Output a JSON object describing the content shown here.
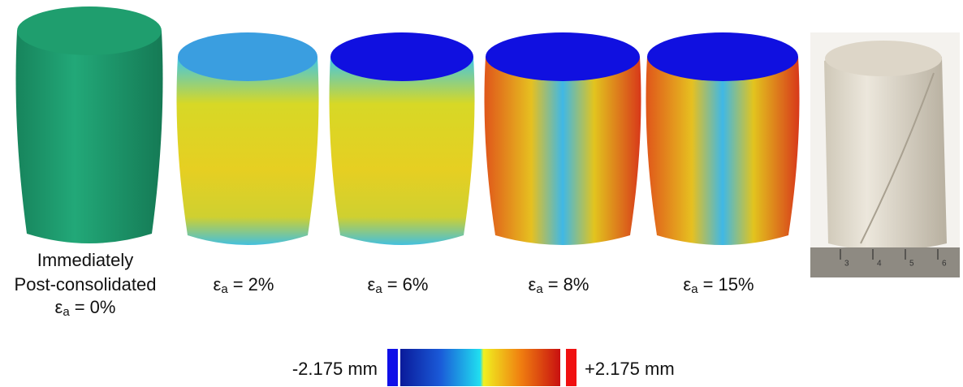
{
  "specimens": [
    {
      "caption": [
        "Immediately",
        "Post-consolidated"
      ],
      "strain": {
        "symbol": "ε",
        "subscript": "a",
        "text": "= 0%"
      }
    },
    {
      "strain": {
        "symbol": "ε",
        "subscript": "a",
        "text": "= 2%"
      }
    },
    {
      "strain": {
        "symbol": "ε",
        "subscript": "a",
        "text": "= 6%"
      }
    },
    {
      "strain": {
        "symbol": "ε",
        "subscript": "a",
        "text": "= 8%"
      }
    },
    {
      "strain": {
        "symbol": "ε",
        "subscript": "a",
        "text": "= 15%"
      }
    }
  ],
  "ruler": {
    "labels": [
      "3",
      "4",
      "5",
      "6"
    ]
  },
  "colorbar": {
    "min_label": "-2.175 mm",
    "max_label": "+2.175 mm"
  }
}
